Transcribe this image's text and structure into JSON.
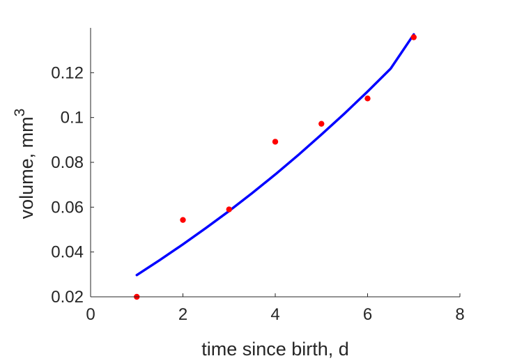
{
  "chart_data": {
    "type": "scatter",
    "xlabel": "time since birth, d",
    "ylabel": {
      "text": "volume, mm",
      "superscript": "3"
    },
    "xlim": [
      0,
      8
    ],
    "ylim": [
      0.02,
      0.14
    ],
    "x_ticks": [
      0,
      2,
      4,
      6,
      8
    ],
    "x_tick_labels": [
      "0",
      "2",
      "4",
      "6",
      "8"
    ],
    "y_ticks": [
      0.02,
      0.04,
      0.06,
      0.08,
      0.1,
      0.12
    ],
    "y_tick_labels": [
      "0.02",
      "0.04",
      "0.06",
      "0.08",
      "0.1",
      "0.12"
    ],
    "grid": false,
    "box": "open (left and bottom axes only)",
    "series": [
      {
        "type": "scatter",
        "color": "#ff0000",
        "x": [
          1,
          2,
          3,
          4,
          5,
          6,
          7
        ],
        "y": [
          0.02,
          0.0543,
          0.059,
          0.0892,
          0.0972,
          0.1085,
          0.1358
        ]
      },
      {
        "type": "line",
        "color": "#0000ff",
        "x": [
          1,
          1.5,
          2,
          2.5,
          3,
          3.5,
          4,
          4.5,
          5,
          5.5,
          6,
          6.5,
          7
        ],
        "y": [
          0.0297,
          0.0364,
          0.0434,
          0.0507,
          0.0583,
          0.0663,
          0.0746,
          0.0833,
          0.0924,
          0.1018,
          0.1116,
          0.1218,
          0.1371
        ]
      }
    ]
  }
}
